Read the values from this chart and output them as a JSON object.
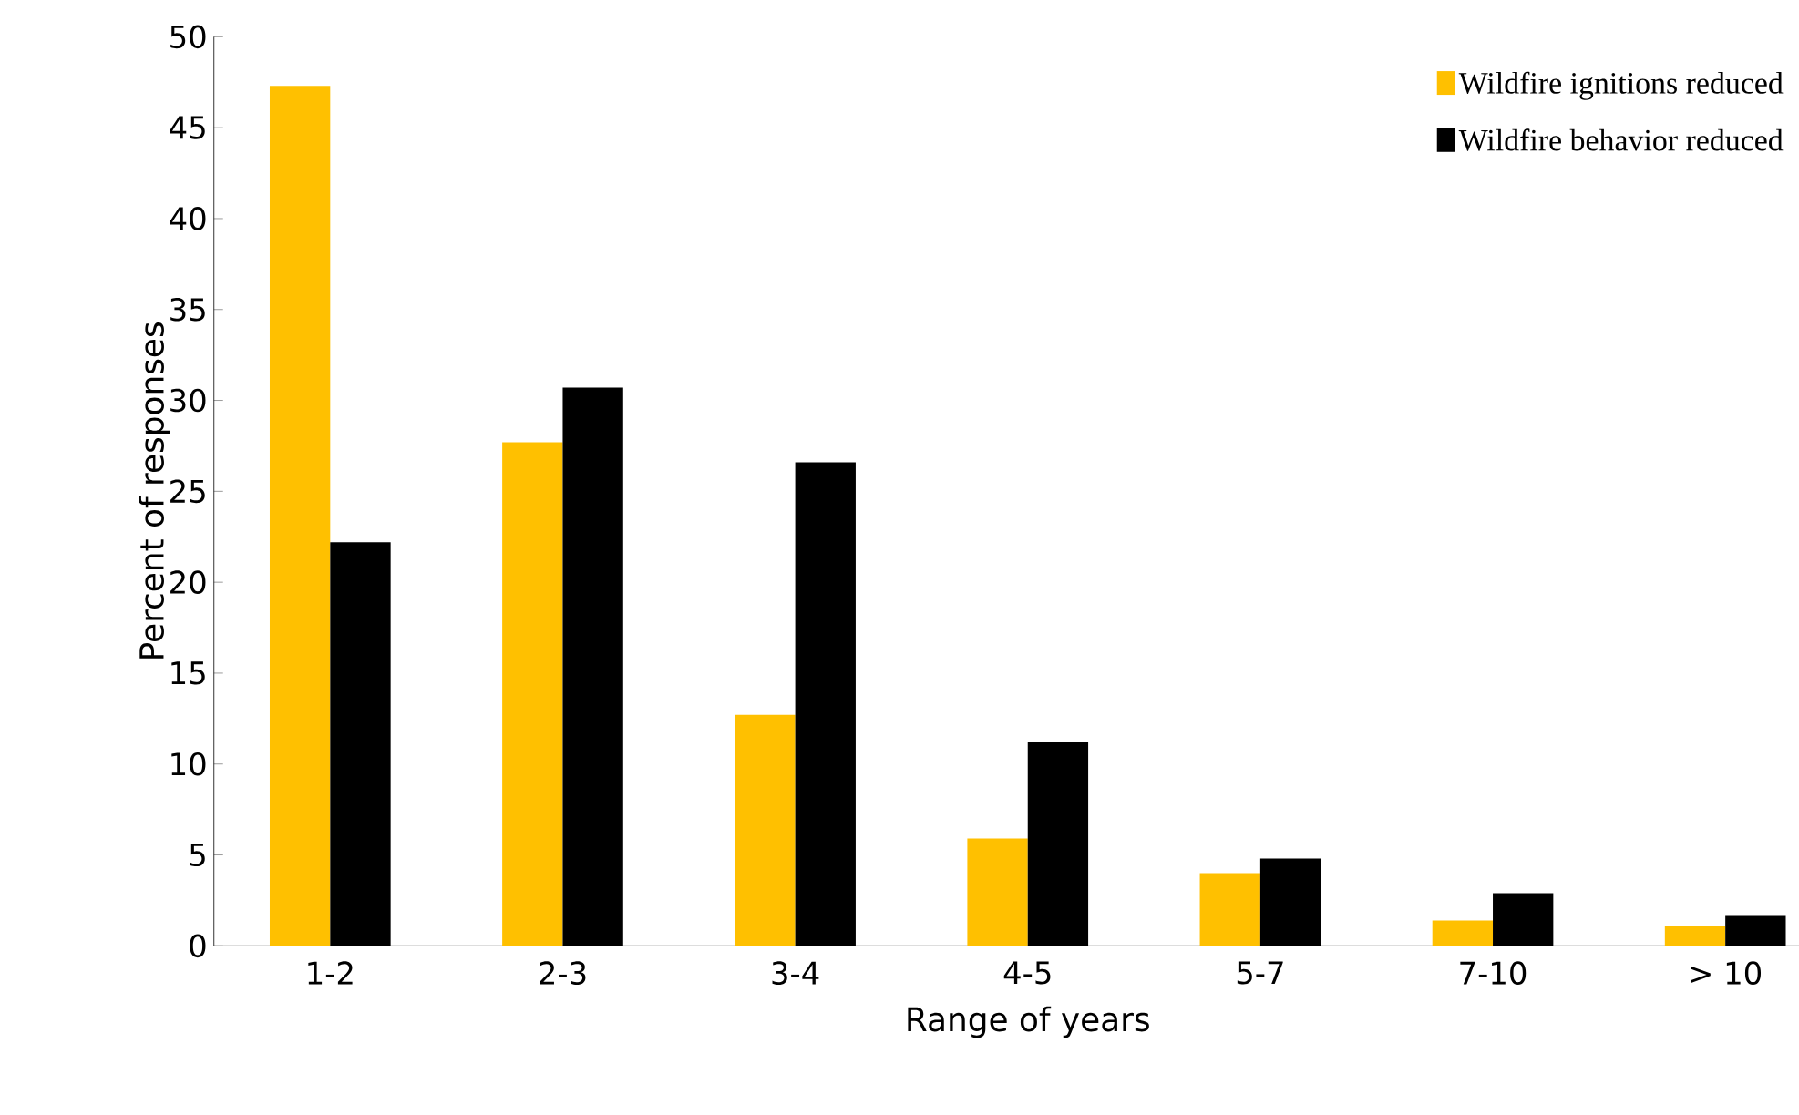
{
  "chart_data": {
    "type": "bar",
    "xlabel": "Range of years",
    "ylabel": "Percent of responses",
    "categories": [
      "1-2",
      "2-3",
      "3-4",
      "4-5",
      "5-7",
      "7-10",
      "> 10"
    ],
    "series": [
      {
        "name": "Wildfire ignitions reduced",
        "color": "#ffc000",
        "values": [
          47.3,
          27.7,
          12.7,
          5.9,
          4.0,
          1.4,
          1.1
        ]
      },
      {
        "name": "Wildfire behavior reduced",
        "color": "#000000",
        "values": [
          22.2,
          30.7,
          26.6,
          11.2,
          4.8,
          2.9,
          1.7
        ]
      }
    ],
    "ylim": [
      0,
      50
    ],
    "yticks": [
      0,
      5,
      10,
      15,
      20,
      25,
      30,
      35,
      40,
      45,
      50
    ],
    "grid": false,
    "legend": "top right"
  }
}
